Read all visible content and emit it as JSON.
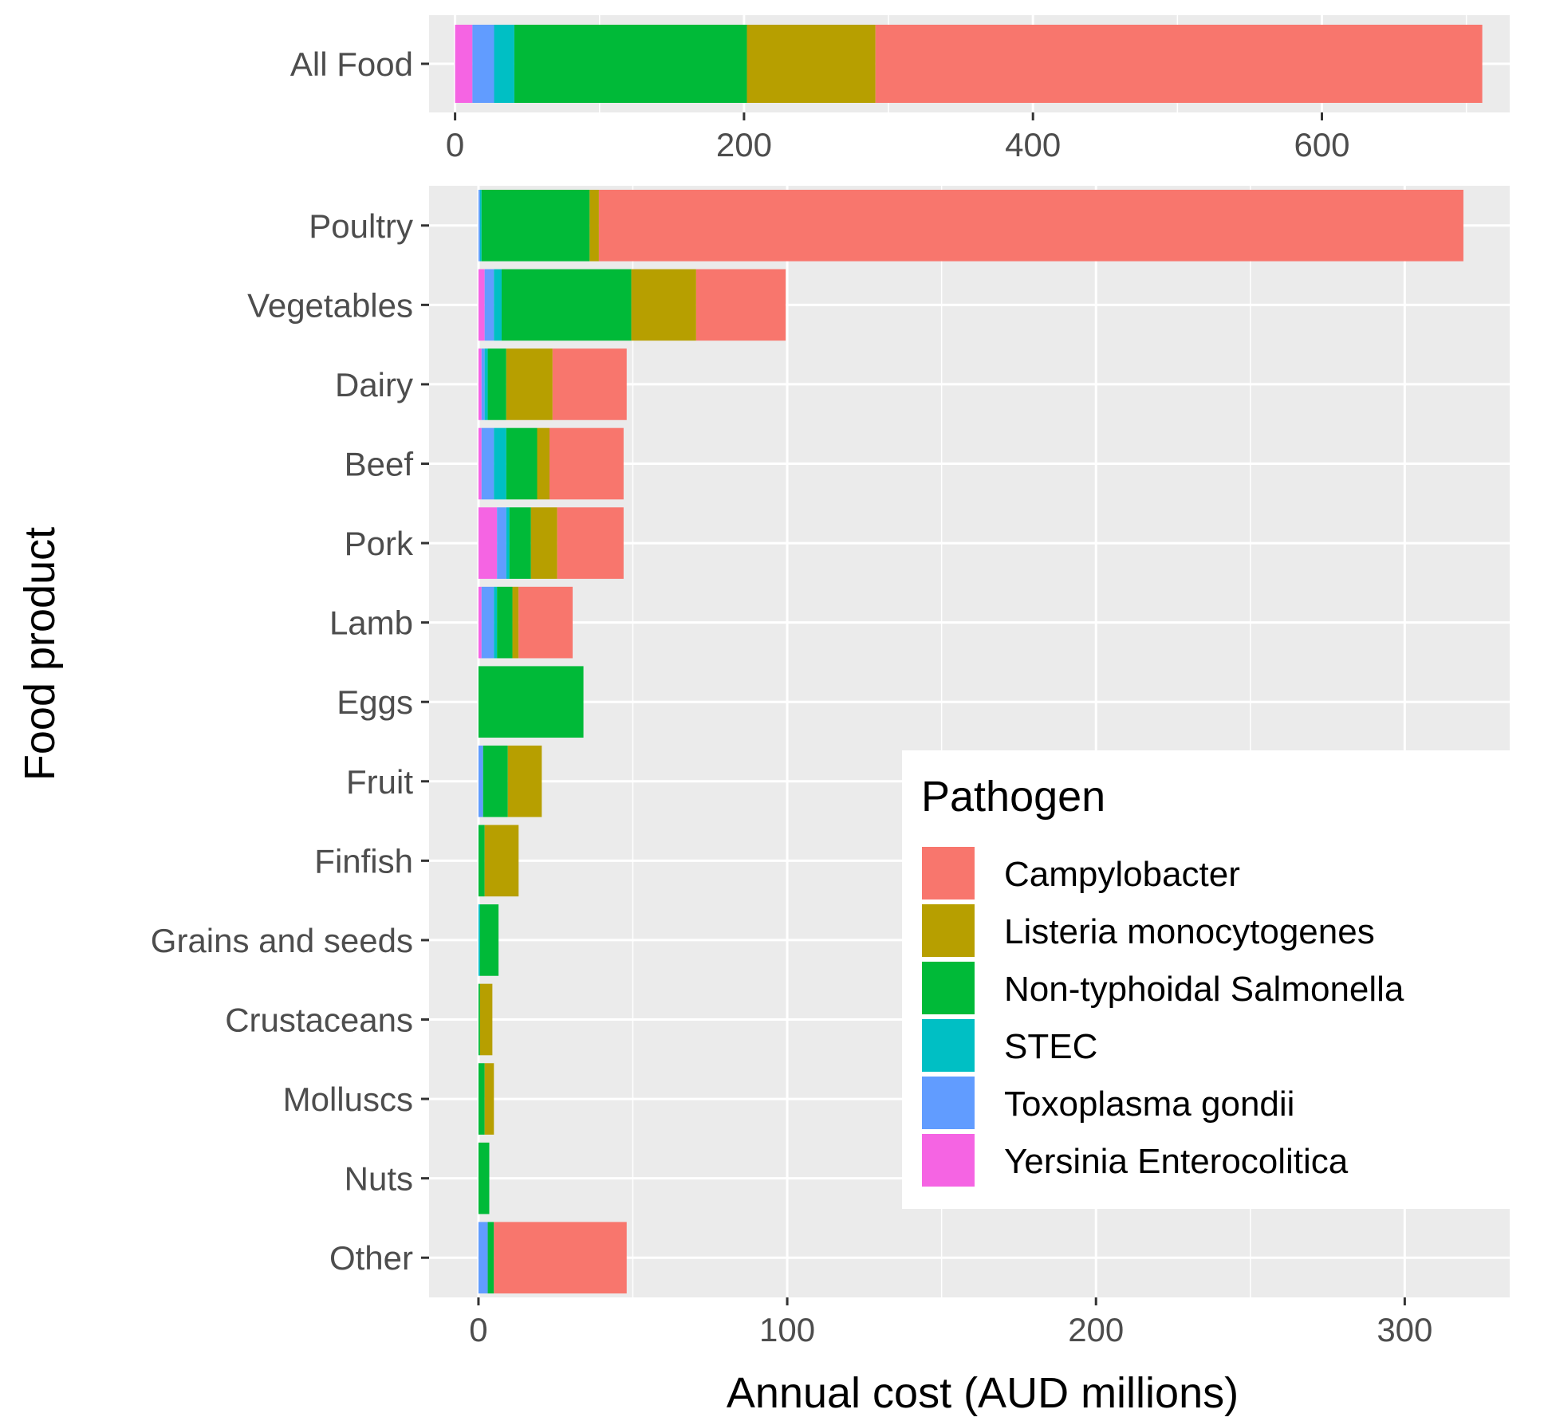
{
  "chart_data": {
    "type": "bar",
    "orientation": "horizontal",
    "stacked": true,
    "xlabel": "Annual cost (AUD millions)",
    "ylabel": "Food product",
    "grid": true,
    "legend": {
      "title": "Pathogen",
      "placement": "inside-bottom-right",
      "order": [
        "Campylobacter",
        "Listeria monocytogenes",
        "Non-typhoidal Salmonella",
        "STEC",
        "Toxoplasma gondii",
        "Yersinia Enterocolitica"
      ]
    },
    "stack_order": [
      "Yersinia Enterocolitica",
      "Toxoplasma gondii",
      "STEC",
      "Non-typhoidal Salmonella",
      "Listeria monocytogenes",
      "Campylobacter"
    ],
    "colors": {
      "Campylobacter": "#F8766D",
      "Listeria monocytogenes": "#B79F00",
      "Non-typhoidal Salmonella": "#00BA38",
      "STEC": "#00BFC4",
      "Toxoplasma gondii": "#619CFF",
      "Yersinia Enterocolitica": "#F564E3"
    },
    "panels": [
      {
        "id": "all-food",
        "categories": [
          "All Food"
        ],
        "xlim": [
          -18,
          730
        ],
        "xticks": [
          0,
          200,
          400,
          600
        ],
        "xtick_labels": [
          "0",
          "200",
          "400",
          "600"
        ],
        "series": [
          {
            "name": "Yersinia Enterocolitica",
            "values": [
              12
            ]
          },
          {
            "name": "Toxoplasma gondii",
            "values": [
              15
            ]
          },
          {
            "name": "STEC",
            "values": [
              14
            ]
          },
          {
            "name": "Non-typhoidal Salmonella",
            "values": [
              161
            ]
          },
          {
            "name": "Listeria monocytogenes",
            "values": [
              89
            ]
          },
          {
            "name": "Campylobacter",
            "values": [
              420
            ]
          }
        ]
      },
      {
        "id": "by-product",
        "categories": [
          "Poultry",
          "Vegetables",
          "Dairy",
          "Beef",
          "Pork",
          "Lamb",
          "Eggs",
          "Fruit",
          "Finfish",
          "Grains and seeds",
          "Crustaceans",
          "Molluscs",
          "Nuts",
          "Other"
        ],
        "xlim": [
          -16,
          334
        ],
        "xticks": [
          0,
          100,
          200,
          300
        ],
        "xtick_labels": [
          "0",
          "100",
          "200",
          "300"
        ],
        "series": [
          {
            "name": "Yersinia Enterocolitica",
            "values": [
              0,
              2,
              1,
              1,
              6,
              1,
              0,
              0,
              0,
              0,
              0,
              0,
              0,
              0
            ]
          },
          {
            "name": "Toxoplasma gondii",
            "values": [
              0.5,
              3,
              1,
              4,
              3,
              4,
              0,
              1.5,
              0,
              0,
              0,
              0,
              0,
              3
            ]
          },
          {
            "name": "STEC",
            "values": [
              0.5,
              2.5,
              1,
              4,
              1,
              1,
              0,
              0,
              0,
              0.5,
              0,
              0,
              0,
              0
            ]
          },
          {
            "name": "Non-typhoidal Salmonella",
            "values": [
              35,
              42,
              6,
              10,
              7,
              5,
              34,
              8,
              2,
              6,
              0.5,
              2,
              3.5,
              2
            ]
          },
          {
            "name": "Listeria monocytogenes",
            "values": [
              3,
              21,
              15,
              4,
              8.5,
              2,
              0,
              11,
              11,
              0,
              4,
              3,
              0,
              0
            ]
          },
          {
            "name": "Campylobacter",
            "values": [
              280,
              29,
              24,
              24,
              21.5,
              17.5,
              0,
              0,
              0,
              0,
              0,
              0,
              0,
              43
            ]
          }
        ]
      }
    ]
  }
}
